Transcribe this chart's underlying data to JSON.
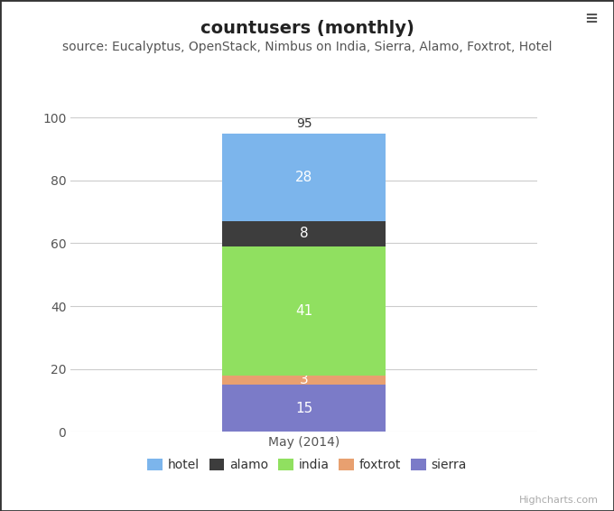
{
  "title": "countusers (monthly)",
  "subtitle": "source: Eucalyptus, OpenStack, Nimbus on India, Sierra, Alamo, Foxtrot, Hotel",
  "xlabel": "May (2014)",
  "categories": [
    "May (2014)"
  ],
  "series": [
    {
      "name": "sierra",
      "values": [
        15
      ],
      "color": "#7b7bc8"
    },
    {
      "name": "foxtrot",
      "values": [
        3
      ],
      "color": "#e8a070"
    },
    {
      "name": "india",
      "values": [
        41
      ],
      "color": "#90e060"
    },
    {
      "name": "alamo",
      "values": [
        8
      ],
      "color": "#3d3d3d"
    },
    {
      "name": "hotel",
      "values": [
        28
      ],
      "color": "#7cb5ec"
    }
  ],
  "total_label": 95,
  "ylim": [
    0,
    100
  ],
  "yticks": [
    0,
    20,
    40,
    60,
    80,
    100
  ],
  "background_color": "#ffffff",
  "plot_background_color": "#ffffff",
  "grid_color": "#cccccc",
  "title_fontsize": 14,
  "subtitle_fontsize": 10,
  "tick_fontsize": 10,
  "legend_fontsize": 10,
  "bar_width": 0.35,
  "bar_label_color": "#ffffff",
  "bar_label_fontsize": 11,
  "total_label_color": "#333333",
  "total_label_fontsize": 10,
  "highcharts_credit": "Highcharts.com",
  "legend_order": [
    "hotel",
    "alamo",
    "india",
    "foxtrot",
    "sierra"
  ],
  "outer_border_color": "#333333"
}
